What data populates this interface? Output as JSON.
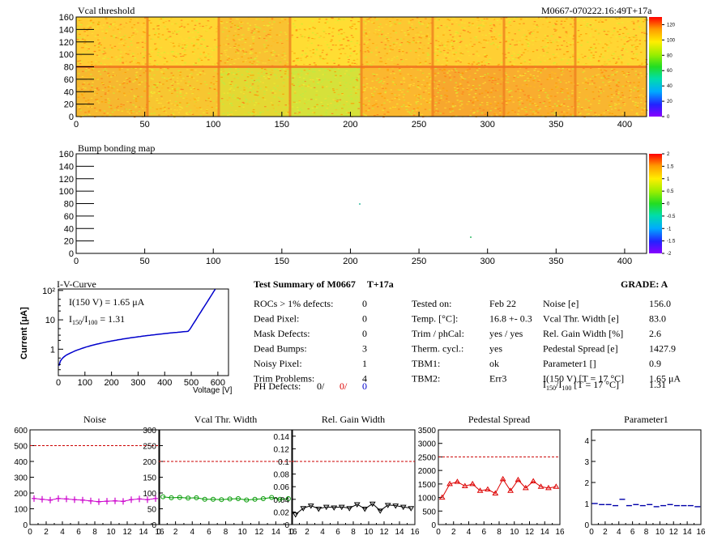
{
  "page": {
    "id_label": "M0667-070222.16:49T+17a"
  },
  "heatmap1": {
    "title": "Vcal threshold",
    "x_ticks": [
      "0",
      "50",
      "100",
      "150",
      "200",
      "250",
      "300",
      "350",
      "400"
    ],
    "y_ticks": [
      "0",
      "20",
      "40",
      "60",
      "80",
      "100",
      "120",
      "140",
      "160"
    ],
    "palette_ticks": [
      "0",
      "20",
      "40",
      "60",
      "80",
      "100",
      "120"
    ]
  },
  "heatmap2": {
    "title": "Bump bonding map",
    "x_ticks": [
      "0",
      "50",
      "100",
      "150",
      "200",
      "250",
      "300",
      "350",
      "400"
    ],
    "y_ticks": [
      "0",
      "20",
      "40",
      "60",
      "80",
      "100",
      "120",
      "140",
      "160"
    ],
    "palette_ticks": [
      "-2",
      "-1.5",
      "-1",
      "-0.5",
      "0",
      "0.5",
      "1",
      "1.5",
      "2"
    ]
  },
  "iv": {
    "title": "I-V-Curve",
    "ylabel": "Current [μA]",
    "xlabel": "Voltage [V]",
    "x_ticks": [
      "0",
      "100",
      "200",
      "300",
      "400",
      "500",
      "600"
    ],
    "y_ticks": [
      "1",
      "10",
      "10²"
    ],
    "annotation1": "I(150 V) = 1.65 μA",
    "annotation2_main": "I",
    "annotation2_sub1": "150",
    "annotation2_mid": "/I",
    "annotation2_sub2": "100",
    "annotation2_val": "=  1.31"
  },
  "summary": {
    "title": "Test Summary of M0667",
    "title_tag": "T+17a",
    "grade": "GRADE:  A",
    "left_rows": [
      {
        "label": "ROCs > 1% defects:",
        "value": "0"
      },
      {
        "label": "Dead Pixel:",
        "value": "0"
      },
      {
        "label": "Mask Defects:",
        "value": "0"
      },
      {
        "label": "Dead Bumps:",
        "value": "3"
      },
      {
        "label": "Noisy Pixel:",
        "value": "1"
      },
      {
        "label": "Trim Problems:",
        "value": "4"
      }
    ],
    "ph_label": "PH Defects:",
    "ph_v1": "0/",
    "ph_v2": "0/",
    "ph_v3": "0",
    "mid_rows": [
      {
        "label": "Tested on:",
        "value": "Feb 22"
      },
      {
        "label": "Temp. [°C]:",
        "value": "16.8 +- 0.3"
      },
      {
        "label": "Trim / phCal:",
        "value": "yes / yes"
      },
      {
        "label": "Therm. cycl.:",
        "value": "yes"
      },
      {
        "label": "TBM1:",
        "value": "ok"
      },
      {
        "label": "TBM2:",
        "value": "Err3"
      }
    ],
    "right_rows": [
      {
        "label": "Noise [e]",
        "value": "156.0"
      },
      {
        "label": "Vcal Thr. Width [e]",
        "value": "83.0"
      },
      {
        "label": "Rel. Gain Width [%]",
        "value": "2.6"
      },
      {
        "label": "Pedestal Spread [e]",
        "value": "1427.9"
      },
      {
        "label": "Parameter1 []",
        "value": "0.9"
      },
      {
        "label": "I(150 V) [T = 17 °C]",
        "value": "1.65 μA"
      }
    ],
    "ratio_label_a": "I",
    "ratio_sub1": "150",
    "ratio_label_b": "/I",
    "ratio_sub2": "100",
    "ratio_label_c": "  [T = 17 °C]",
    "ratio_value": "1.31"
  },
  "chart_data": [
    {
      "type": "line",
      "title": "Noise",
      "x": [
        0,
        1,
        2,
        3,
        4,
        5,
        6,
        7,
        8,
        9,
        10,
        11,
        12,
        13,
        14,
        15
      ],
      "values": [
        165,
        160,
        155,
        165,
        162,
        158,
        155,
        150,
        145,
        148,
        150,
        147,
        158,
        162,
        158,
        165
      ],
      "ref_line": 500,
      "ylim": [
        0,
        600
      ],
      "y_ticks": [
        "0",
        "100",
        "200",
        "300",
        "400",
        "500",
        "600"
      ],
      "x_ticks": [
        "0",
        "2",
        "4",
        "6",
        "8",
        "10",
        "12",
        "14",
        "16"
      ],
      "color": "#cc00cc",
      "marker": "plus"
    },
    {
      "type": "line",
      "title": "Vcal Thr. Width",
      "x": [
        0,
        1,
        2,
        3,
        4,
        5,
        6,
        7,
        8,
        9,
        10,
        11,
        12,
        13,
        14,
        15
      ],
      "values": [
        88,
        85,
        86,
        84,
        85,
        80,
        80,
        79,
        81,
        82,
        78,
        80,
        82,
        86,
        80,
        82
      ],
      "ref_line": 200,
      "ylim": [
        0,
        300
      ],
      "y_ticks": [
        "0",
        "50",
        "100",
        "150",
        "200",
        "250",
        "300"
      ],
      "x_ticks": [
        "0",
        "2",
        "4",
        "6",
        "8",
        "10",
        "12",
        "14",
        "16"
      ],
      "color": "#009900",
      "marker": "circle"
    },
    {
      "type": "line",
      "title": "Rel. Gain Width",
      "x": [
        0,
        1,
        2,
        3,
        4,
        5,
        6,
        7,
        8,
        9,
        10,
        11,
        12,
        13,
        14,
        15
      ],
      "values": [
        0.016,
        0.026,
        0.03,
        0.025,
        0.028,
        0.027,
        0.028,
        0.026,
        0.032,
        0.025,
        0.033,
        0.022,
        0.031,
        0.03,
        0.028,
        0.026
      ],
      "ref_line": 0.1,
      "ylim": [
        0,
        0.15
      ],
      "y_ticks": [
        "0",
        "0.02",
        "0.04",
        "0.06",
        "0.08",
        "0.1",
        "0.12",
        "0.14"
      ],
      "x_ticks": [
        "0",
        "2",
        "4",
        "6",
        "8",
        "10",
        "12",
        "14",
        "16"
      ],
      "color": "#000000",
      "marker": "triangle-down"
    },
    {
      "type": "line",
      "title": "Pedestal Spread",
      "x": [
        0,
        1,
        2,
        3,
        4,
        5,
        6,
        7,
        8,
        9,
        10,
        11,
        12,
        13,
        14,
        15
      ],
      "values": [
        1000,
        1500,
        1580,
        1420,
        1500,
        1250,
        1300,
        1150,
        1680,
        1250,
        1650,
        1350,
        1600,
        1400,
        1350,
        1400
      ],
      "ref_line": 2500,
      "ylim": [
        0,
        3500
      ],
      "y_ticks": [
        "0",
        "500",
        "1000",
        "1500",
        "2000",
        "2500",
        "3000",
        "3500"
      ],
      "x_ticks": [
        "0",
        "2",
        "4",
        "6",
        "8",
        "10",
        "12",
        "14",
        "16"
      ],
      "color": "#dd0000",
      "marker": "triangle-up"
    },
    {
      "type": "line",
      "title": "Parameter1",
      "x": [
        0,
        1,
        2,
        3,
        4,
        5,
        6,
        7,
        8,
        9,
        10,
        11,
        12,
        13,
        14,
        15
      ],
      "values": [
        1.0,
        0.95,
        0.95,
        0.9,
        1.2,
        0.9,
        0.95,
        0.9,
        0.95,
        0.85,
        0.9,
        0.95,
        0.9,
        0.9,
        0.9,
        0.85
      ],
      "ref_line": null,
      "ylim": [
        0,
        4.5
      ],
      "y_ticks": [
        "0",
        "1",
        "2",
        "3",
        "4"
      ],
      "x_ticks": [
        "0",
        "2",
        "4",
        "6",
        "8",
        "10",
        "12",
        "14",
        "16"
      ],
      "color": "#0000aa",
      "marker": "hline"
    }
  ]
}
